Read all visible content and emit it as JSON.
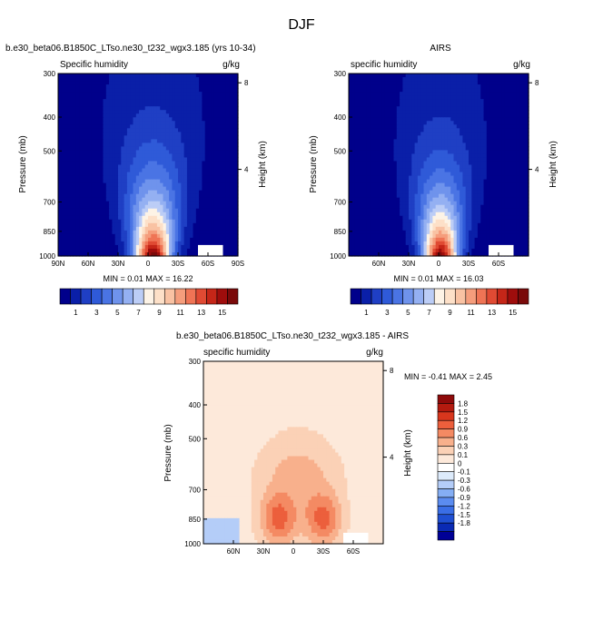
{
  "figure_title": "DJF",
  "colors": {
    "abs_levels": [
      "#00008b",
      "#0a1fa8",
      "#1f3fc4",
      "#2f5ad8",
      "#4a74e4",
      "#6f93ec",
      "#94b0f2",
      "#bccdf6",
      "#fdf3e6",
      "#fde0c8",
      "#f9c2a3",
      "#f59d7c",
      "#ef7455",
      "#e04a33",
      "#c52618",
      "#9f0d0c",
      "#7a0a0a"
    ],
    "diff_levels": [
      "#000096",
      "#0a2ab4",
      "#1f4fd2",
      "#3a6ee6",
      "#5b8cf0",
      "#85aef4",
      "#b4cdf8",
      "#ddebfb",
      "#ffffff",
      "#fde9da",
      "#fbd1b6",
      "#f8b08c",
      "#f48a63",
      "#ec5f3c",
      "#d8361d",
      "#b31a0f",
      "#8e0a0a"
    ],
    "missing": "#ffffff"
  },
  "chart_data": [
    {
      "id": "model",
      "type": "heatmap",
      "title": "b.e30_beta06.B1850C_LTso.ne30_t232_wgx3.185 (yrs 10-34)",
      "left_label": "Specific humidity",
      "right_label": "g/kg",
      "ylabel": "Pressure (mb)",
      "y2label": "Height (km)",
      "xticks": [
        "90N",
        "60N",
        "30N",
        "0",
        "30S",
        "60S",
        "90S"
      ],
      "xtick_values": [
        90,
        60,
        30,
        0,
        -30,
        -60,
        -90
      ],
      "xlim": [
        90,
        -90
      ],
      "yticks": [
        "300",
        "400",
        "500",
        "700",
        "850",
        "1000"
      ],
      "ytick_values": [
        300,
        400,
        500,
        700,
        850,
        1000
      ],
      "ylim": [
        300,
        1000
      ],
      "y2ticks": [
        "8",
        "4"
      ],
      "y2tick_values": [
        8,
        4
      ],
      "stats": "MIN =  0.01  MAX =  16.22",
      "field": {
        "max": 16.22,
        "center_lat": -5,
        "width": 28,
        "scale_height": 0.16,
        "top_bump": 0.1
      },
      "colorbar_ticks": [
        "1",
        "3",
        "5",
        "7",
        "9",
        "11",
        "13",
        "15"
      ]
    },
    {
      "id": "obs",
      "type": "heatmap",
      "title": "AIRS",
      "left_label": "specific humidity",
      "right_label": "g/kg",
      "ylabel": "Pressure (mb)",
      "y2label": "Height (km)",
      "xticks": [
        "60N",
        "30N",
        "0",
        "30S",
        "60S"
      ],
      "xtick_values": [
        60,
        30,
        0,
        -30,
        -60
      ],
      "xlim": [
        90,
        -90
      ],
      "yticks": [
        "300",
        "400",
        "500",
        "700",
        "850",
        "1000"
      ],
      "ytick_values": [
        300,
        400,
        500,
        700,
        850,
        1000
      ],
      "ylim": [
        300,
        1000
      ],
      "y2ticks": [
        "8",
        "4"
      ],
      "y2tick_values": [
        8,
        4
      ],
      "stats": "MIN =  0.01  MAX =  16.03",
      "field": {
        "max": 16.03,
        "center_lat": -2,
        "width": 26,
        "scale_height": 0.15,
        "top_bump": 0.1
      },
      "colorbar_ticks": [
        "1",
        "3",
        "5",
        "7",
        "9",
        "11",
        "13",
        "15"
      ]
    },
    {
      "id": "diff",
      "type": "heatmap",
      "title": "b.e30_beta06.B1850C_LTso.ne30_t232_wgx3.185 - AIRS",
      "left_label": "specific humidity",
      "right_label": "g/kg",
      "ylabel": "Pressure (mb)",
      "y2label": "Height (km)",
      "xticks": [
        "60N",
        "30N",
        "0",
        "30S",
        "60S"
      ],
      "xtick_values": [
        60,
        30,
        0,
        -30,
        -60
      ],
      "xlim": [
        90,
        -90
      ],
      "yticks": [
        "300",
        "400",
        "500",
        "700",
        "850",
        "1000"
      ],
      "ytick_values": [
        300,
        400,
        500,
        700,
        850,
        1000
      ],
      "ylim": [
        300,
        1000
      ],
      "y2ticks": [
        "8",
        "4"
      ],
      "y2tick_values": [
        8,
        4
      ],
      "stats": "MIN = -0.41  MAX =   2.45",
      "field": {
        "max": 2.45,
        "min": -0.41,
        "peaks": [
          [
            15,
            850
          ],
          [
            -30,
            850
          ]
        ]
      },
      "colorbar_ticks": [
        "1.8",
        "1.5",
        "1.2",
        "0.9",
        "0.6",
        "0.3",
        "0.1",
        "0",
        "-0.1",
        "-0.3",
        "-0.6",
        "-0.9",
        "-1.2",
        "-1.5",
        "-1.8"
      ],
      "colorbar_levels": [
        1.8,
        1.5,
        1.2,
        0.9,
        0.6,
        0.3,
        0.1,
        0,
        -0.1,
        -0.3,
        -0.6,
        -0.9,
        -1.2,
        -1.5,
        -1.8
      ]
    }
  ]
}
